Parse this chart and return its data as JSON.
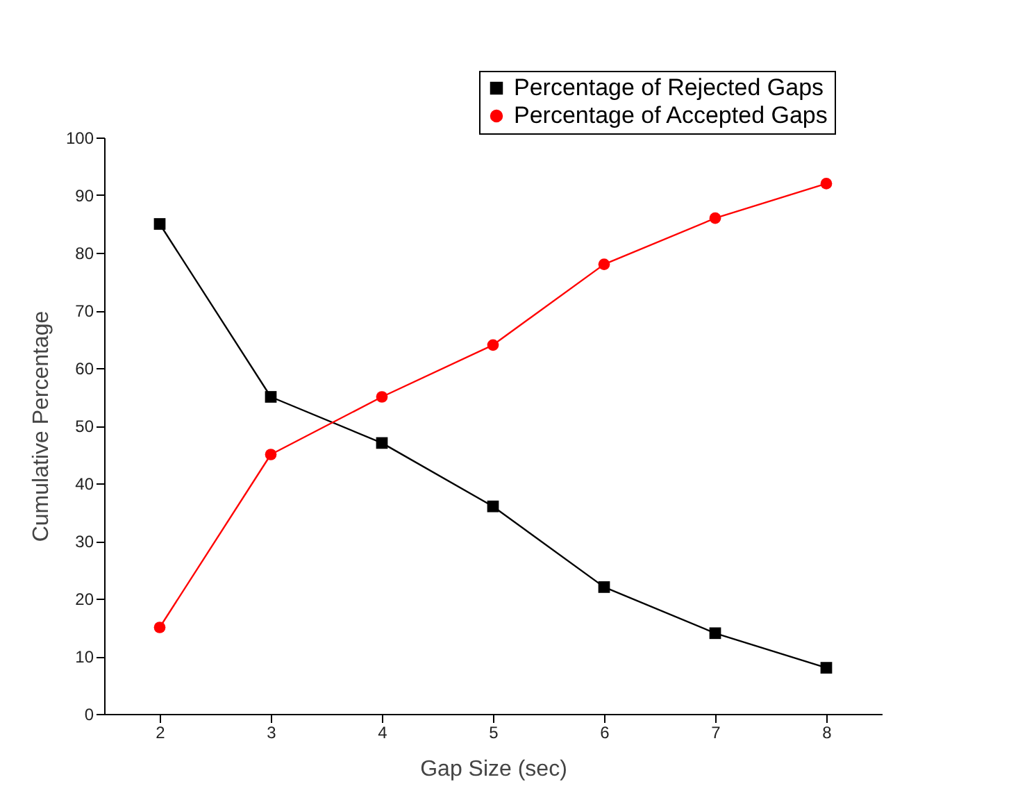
{
  "chart_data": {
    "type": "line",
    "xlabel": "Gap Size (sec)",
    "ylabel": "Cumulative Percentage",
    "x": [
      2,
      3,
      4,
      5,
      6,
      7,
      8
    ],
    "xlim": [
      1.5,
      8.5
    ],
    "xticks": [
      2,
      3,
      4,
      5,
      6,
      7,
      8
    ],
    "ylim": [
      0,
      100
    ],
    "yticks": [
      0,
      10,
      20,
      30,
      40,
      50,
      60,
      70,
      80,
      90,
      100
    ],
    "grid": false,
    "legend": "top right",
    "line_style": "solid",
    "series": [
      {
        "name": "Percentage of Rejected Gaps",
        "color": "#000000",
        "marker": "square",
        "values": [
          85,
          55,
          47,
          36,
          22,
          14,
          8
        ]
      },
      {
        "name": "Percentage of Accepted Gaps",
        "color": "#ff0000",
        "marker": "circle",
        "values": [
          15,
          45,
          55,
          64,
          78,
          86,
          92
        ]
      }
    ]
  }
}
